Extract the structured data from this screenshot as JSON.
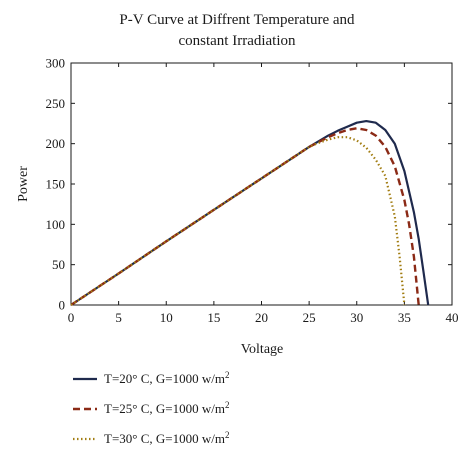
{
  "chart_data": {
    "type": "line",
    "title_line1": "P-V Curve at Diffrent Temperature and",
    "title_line2": "constant Irradiation",
    "xlabel": "Voltage",
    "ylabel": "Power",
    "xlim": [
      0,
      40
    ],
    "ylim": [
      0,
      300
    ],
    "xticks": [
      "0",
      "5",
      "10",
      "15",
      "20",
      "25",
      "30",
      "35",
      "40"
    ],
    "yticks": [
      "0",
      "50",
      "100",
      "150",
      "200",
      "250",
      "300"
    ],
    "grid": false,
    "legend_position": "bottom-left",
    "series": [
      {
        "name": "T=20° C, G=1000 w/m",
        "name_sup": "2",
        "color": "#1f2a4d",
        "style": "solid",
        "x": [
          0,
          5,
          10,
          15,
          20,
          25,
          27,
          28,
          29,
          30,
          31,
          32,
          33,
          34,
          35,
          36,
          36.5,
          37,
          37.5
        ],
        "y": [
          0,
          39,
          79,
          118,
          157,
          196,
          210,
          216,
          221,
          226,
          228,
          226,
          217,
          200,
          166,
          115,
          82,
          42,
          0
        ]
      },
      {
        "name": "T=25° C, G=1000 w/m",
        "name_sup": "2",
        "color": "#8b2a16",
        "style": "dashed",
        "x": [
          0,
          5,
          10,
          15,
          20,
          25,
          27,
          28,
          29,
          30,
          31,
          32,
          33,
          34,
          35,
          35.5,
          36,
          36.5
        ],
        "y": [
          0,
          39,
          79,
          118,
          157,
          196,
          208,
          213,
          217,
          219,
          217,
          210,
          196,
          172,
          130,
          100,
          60,
          0
        ]
      },
      {
        "name": "T=30° C, G=1000 w/m",
        "name_sup": "2",
        "color": "#a27d12",
        "style": "dotted",
        "x": [
          0,
          5,
          10,
          15,
          20,
          25,
          26,
          27,
          28,
          29,
          30,
          31,
          32,
          33,
          34,
          34.5,
          35
        ],
        "y": [
          0,
          39,
          79,
          118,
          157,
          196,
          201,
          205,
          208,
          208,
          204,
          195,
          180,
          160,
          110,
          60,
          0
        ]
      }
    ]
  }
}
